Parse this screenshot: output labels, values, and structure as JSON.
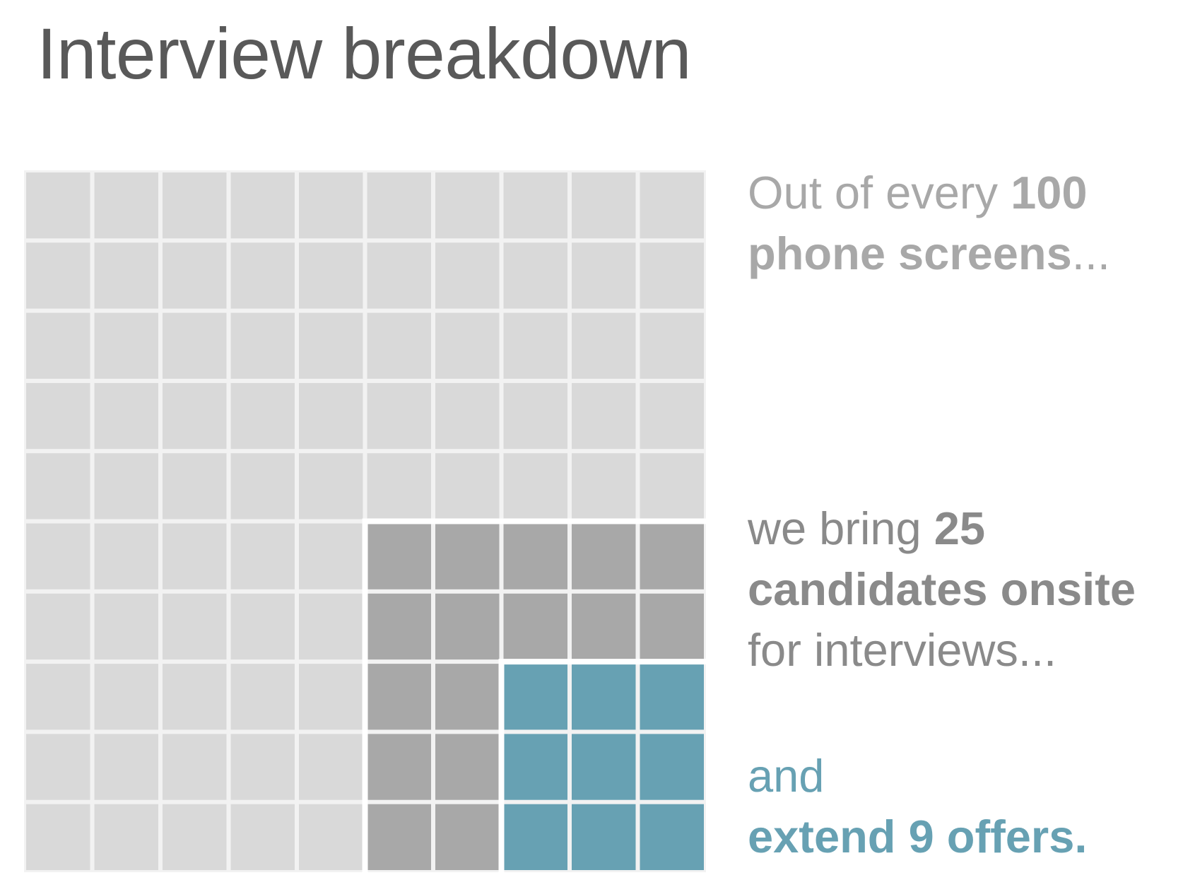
{
  "title": "Interview breakdown",
  "colors": {
    "screens": "#d9d9d9",
    "onsite": "#a8a8a8",
    "offers": "#67a1b3",
    "gap": "#f2f2f2",
    "group_border": "#ffffff",
    "text_screens": "#a8a8a8",
    "text_onsite": "#8a8a8a",
    "text_offers": "#67a1b3"
  },
  "annotations": {
    "screens": {
      "prefix": "Out of every ",
      "number": "100",
      "noun": "phone screens",
      "suffix": "..."
    },
    "onsite": {
      "prefix": "we bring ",
      "number": "25",
      "noun": "candidates onsite",
      "suffix": "for interviews..."
    },
    "offers": {
      "prefix": "and",
      "emphasis": "extend 9 offers."
    }
  },
  "chart_data": {
    "type": "waffle",
    "rows": 10,
    "columns": 10,
    "total": 100,
    "groups": [
      {
        "name": "phone screens",
        "count": 100,
        "color": "#d9d9d9",
        "region": {
          "rows": [
            0,
            9
          ],
          "cols": [
            0,
            9
          ]
        }
      },
      {
        "name": "candidates onsite",
        "count": 25,
        "color": "#a8a8a8",
        "region": {
          "rows": [
            5,
            9
          ],
          "cols": [
            5,
            9
          ]
        }
      },
      {
        "name": "offers",
        "count": 9,
        "color": "#67a1b3",
        "region": {
          "rows": [
            7,
            9
          ],
          "cols": [
            7,
            9
          ]
        }
      }
    ]
  }
}
